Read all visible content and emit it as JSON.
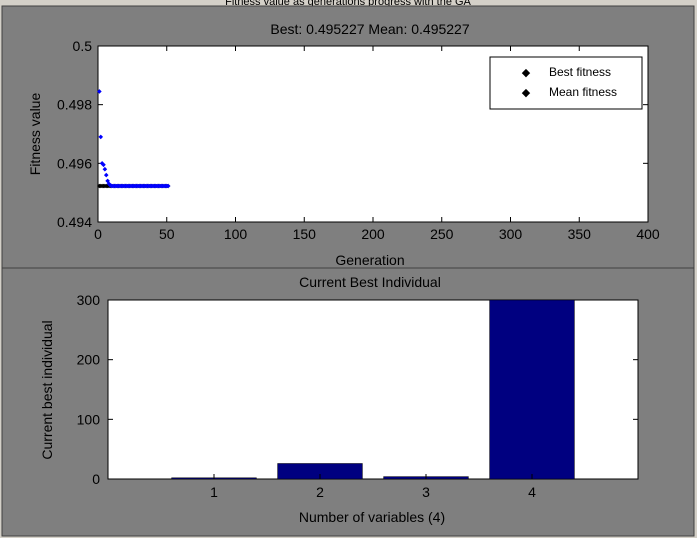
{
  "window": {
    "partial_title": "Fitness value as generations progress with the GA"
  },
  "chart_data": [
    {
      "type": "scatter",
      "title": "Best: 0.495227 Mean: 0.495227",
      "xlabel": "Generation",
      "ylabel": "Fitness value",
      "xlim": [
        0,
        400
      ],
      "ylim": [
        0.494,
        0.5
      ],
      "xticks": [
        0,
        50,
        100,
        150,
        200,
        250,
        300,
        350,
        400
      ],
      "yticks": [
        0.494,
        0.496,
        0.498,
        0.5
      ],
      "ytick_labels": [
        "0.494",
        "0.496",
        "0.498",
        "0.5"
      ],
      "legend": "top-right",
      "grid": false,
      "series": [
        {
          "name": "Best fitness",
          "color": "#000000",
          "x": [
            1,
            2,
            3,
            4,
            5,
            6,
            7,
            8,
            9,
            10,
            11,
            12,
            13,
            14,
            15,
            16,
            17,
            18,
            19,
            20,
            21,
            22,
            23,
            24,
            25,
            26,
            27,
            28,
            29,
            30,
            31,
            32,
            33,
            34,
            35,
            36,
            37,
            38,
            39,
            40,
            41,
            42,
            43,
            44,
            45,
            46,
            47,
            48,
            49,
            50,
            51
          ],
          "y": [
            0.495227,
            0.495227,
            0.495227,
            0.495227,
            0.495227,
            0.495227,
            0.495227,
            0.495227,
            0.495227,
            0.495227,
            0.495227,
            0.495227,
            0.495227,
            0.495227,
            0.495227,
            0.495227,
            0.495227,
            0.495227,
            0.495227,
            0.495227,
            0.495227,
            0.495227,
            0.495227,
            0.495227,
            0.495227,
            0.495227,
            0.495227,
            0.495227,
            0.495227,
            0.495227,
            0.495227,
            0.495227,
            0.495227,
            0.495227,
            0.495227,
            0.495227,
            0.495227,
            0.495227,
            0.495227,
            0.495227,
            0.495227,
            0.495227,
            0.495227,
            0.495227,
            0.495227,
            0.495227,
            0.495227,
            0.495227,
            0.495227,
            0.495227,
            0.495227
          ]
        },
        {
          "name": "Mean fitness",
          "color": "#0000ff",
          "x": [
            1,
            2,
            3,
            4,
            5,
            6,
            7,
            8,
            9,
            10,
            11,
            12,
            13,
            14,
            15,
            16,
            17,
            18,
            19,
            20,
            21,
            22,
            23,
            24,
            25,
            26,
            27,
            28,
            29,
            30,
            31,
            32,
            33,
            34,
            35,
            36,
            37,
            38,
            39,
            40,
            41,
            42,
            43,
            44,
            45,
            46,
            47,
            48,
            49,
            50,
            51
          ],
          "y": [
            0.49845,
            0.4969,
            0.496,
            0.49595,
            0.4958,
            0.4956,
            0.4954,
            0.4953,
            0.49525,
            0.495227,
            0.495227,
            0.495227,
            0.495227,
            0.495227,
            0.495227,
            0.495227,
            0.495227,
            0.495227,
            0.495227,
            0.495227,
            0.495227,
            0.495227,
            0.495227,
            0.495227,
            0.495227,
            0.495227,
            0.495227,
            0.495227,
            0.495227,
            0.495227,
            0.495227,
            0.495227,
            0.495227,
            0.495227,
            0.495227,
            0.495227,
            0.495227,
            0.495227,
            0.495227,
            0.495227,
            0.495227,
            0.495227,
            0.495227,
            0.495227,
            0.495227,
            0.495227,
            0.495227,
            0.495227,
            0.495227,
            0.495227,
            0.495227
          ]
        }
      ]
    },
    {
      "type": "bar",
      "title": "Current Best Individual",
      "xlabel": "Number of variables (4)",
      "ylabel": "Current best individual",
      "categories": [
        "1",
        "2",
        "3",
        "4"
      ],
      "values": [
        2,
        26,
        4,
        300
      ],
      "ylim": [
        0,
        300
      ],
      "xlim": [
        0,
        5
      ],
      "yticks": [
        0,
        100,
        200,
        300
      ],
      "bar_color": "#000080",
      "grid": false
    }
  ]
}
